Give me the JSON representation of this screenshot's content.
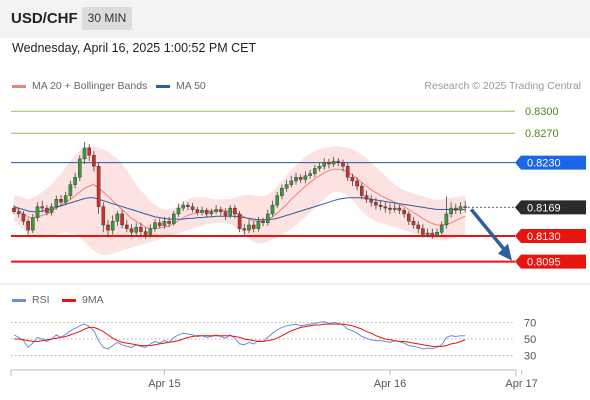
{
  "header": {
    "symbol": "USD/CHF",
    "timeframe": "30 MIN"
  },
  "datetime": "Wednesday, April 16, 2025 1:00:52 PM CET",
  "legend": {
    "ma20_label": "MA 20 + Bollinger Bands",
    "ma50_label": "MA 50",
    "copyright": "Research © 2025 Trading Central"
  },
  "colors": {
    "ma20": "#f08080",
    "ma50": "#2f5f9e",
    "band_fill": "#fde2e2",
    "resistance": "#94bd5e",
    "support": "#e8140f",
    "pivot": "#1e5aa8",
    "current": "#333333",
    "up_candle": "#3a9a3a",
    "down_candle": "#c8322a",
    "rsi": "#6a8fd8",
    "rsi_ma": "#e8140f",
    "arrow": "#2f5f9e"
  },
  "levels": [
    {
      "value": 0.83,
      "label": "0.8300",
      "kind": "resistance"
    },
    {
      "value": 0.827,
      "label": "0.8270",
      "kind": "resistance"
    },
    {
      "value": 0.823,
      "label": "0.8230",
      "kind": "pivot"
    },
    {
      "value": 0.8169,
      "label": "0.8169",
      "kind": "current"
    },
    {
      "value": 0.813,
      "label": "0.8130",
      "kind": "support"
    },
    {
      "value": 0.8095,
      "label": "0.8095",
      "kind": "support"
    }
  ],
  "rsi": {
    "label": "RSI",
    "ma_label": "9MA",
    "ticks": [
      "70",
      "50",
      "30"
    ],
    "tick_values": [
      70,
      50,
      30
    ]
  },
  "x_axis": {
    "labels": [
      "Apr 15",
      "Apr 16",
      "Apr 17"
    ]
  },
  "chart_data": {
    "type": "candlestick",
    "title": "USD/CHF",
    "timeframe": "30 MIN",
    "ylim": [
      0.807,
      0.8318
    ],
    "x_ticks": [
      {
        "label": "Apr 15",
        "bar": 32
      },
      {
        "label": "Apr 16",
        "bar": 80
      },
      {
        "label": "Apr 17",
        "bar": 108
      }
    ],
    "candles": [
      [
        0.8168,
        0.8163,
        0.8172,
        0.816
      ],
      [
        0.8163,
        0.816,
        0.8168,
        0.8155
      ],
      [
        0.816,
        0.815,
        0.8164,
        0.8145
      ],
      [
        0.815,
        0.8138,
        0.8154,
        0.813
      ],
      [
        0.8138,
        0.8155,
        0.816,
        0.8134
      ],
      [
        0.8155,
        0.817,
        0.8176,
        0.815
      ],
      [
        0.817,
        0.8168,
        0.8178,
        0.8162
      ],
      [
        0.8168,
        0.8162,
        0.8172,
        0.8158
      ],
      [
        0.8162,
        0.817,
        0.8175,
        0.8158
      ],
      [
        0.817,
        0.818,
        0.8185,
        0.8166
      ],
      [
        0.818,
        0.8176,
        0.8186,
        0.817
      ],
      [
        0.8176,
        0.8185,
        0.819,
        0.8172
      ],
      [
        0.8185,
        0.82,
        0.8205,
        0.818
      ],
      [
        0.82,
        0.821,
        0.8216,
        0.8195
      ],
      [
        0.821,
        0.8235,
        0.824,
        0.8205
      ],
      [
        0.8235,
        0.825,
        0.8258,
        0.8228
      ],
      [
        0.825,
        0.824,
        0.8255,
        0.8232
      ],
      [
        0.824,
        0.8225,
        0.8246,
        0.8218
      ],
      [
        0.8225,
        0.817,
        0.823,
        0.816
      ],
      [
        0.817,
        0.8145,
        0.8176,
        0.8135
      ],
      [
        0.8145,
        0.8138,
        0.8152,
        0.8128
      ],
      [
        0.8138,
        0.815,
        0.8158,
        0.8132
      ],
      [
        0.815,
        0.816,
        0.8164,
        0.8144
      ],
      [
        0.816,
        0.8145,
        0.8166,
        0.814
      ],
      [
        0.8145,
        0.814,
        0.8152,
        0.8135
      ],
      [
        0.814,
        0.8135,
        0.8146,
        0.813
      ],
      [
        0.8135,
        0.8142,
        0.8148,
        0.813
      ],
      [
        0.8142,
        0.8136,
        0.8148,
        0.813
      ],
      [
        0.8136,
        0.8132,
        0.8142,
        0.8126
      ],
      [
        0.8132,
        0.814,
        0.8146,
        0.8128
      ],
      [
        0.814,
        0.8148,
        0.8153,
        0.8136
      ],
      [
        0.8148,
        0.8144,
        0.8154,
        0.814
      ],
      [
        0.8144,
        0.815,
        0.8156,
        0.814
      ],
      [
        0.815,
        0.8147,
        0.8156,
        0.8142
      ],
      [
        0.8147,
        0.816,
        0.8164,
        0.8144
      ],
      [
        0.816,
        0.8168,
        0.8174,
        0.8156
      ],
      [
        0.8168,
        0.8172,
        0.8177,
        0.8164
      ],
      [
        0.8172,
        0.817,
        0.8176,
        0.8165
      ],
      [
        0.817,
        0.8166,
        0.8175,
        0.8162
      ],
      [
        0.8166,
        0.8162,
        0.817,
        0.8158
      ],
      [
        0.8162,
        0.8165,
        0.817,
        0.8158
      ],
      [
        0.8165,
        0.816,
        0.8168,
        0.8155
      ],
      [
        0.816,
        0.8163,
        0.8167,
        0.8156
      ],
      [
        0.8163,
        0.8166,
        0.8172,
        0.816
      ],
      [
        0.8166,
        0.8163,
        0.817,
        0.8158
      ],
      [
        0.8163,
        0.8158,
        0.8168,
        0.8152
      ],
      [
        0.8158,
        0.8168,
        0.8172,
        0.8154
      ],
      [
        0.8168,
        0.816,
        0.8172,
        0.8154
      ],
      [
        0.816,
        0.814,
        0.8164,
        0.8135
      ],
      [
        0.814,
        0.8138,
        0.8146,
        0.8132
      ],
      [
        0.8138,
        0.8145,
        0.8152,
        0.8134
      ],
      [
        0.8145,
        0.814,
        0.815,
        0.8135
      ],
      [
        0.814,
        0.815,
        0.8156,
        0.8136
      ],
      [
        0.815,
        0.8148,
        0.8155,
        0.8143
      ],
      [
        0.8148,
        0.816,
        0.8166,
        0.8144
      ],
      [
        0.816,
        0.8172,
        0.8178,
        0.8156
      ],
      [
        0.8172,
        0.8185,
        0.819,
        0.8168
      ],
      [
        0.8185,
        0.8195,
        0.82,
        0.818
      ],
      [
        0.8195,
        0.82,
        0.8206,
        0.819
      ],
      [
        0.82,
        0.8205,
        0.8212,
        0.8196
      ],
      [
        0.8205,
        0.821,
        0.8216,
        0.82
      ],
      [
        0.821,
        0.8207,
        0.8214,
        0.8202
      ],
      [
        0.8207,
        0.8212,
        0.8218,
        0.8202
      ],
      [
        0.8212,
        0.8215,
        0.822,
        0.8208
      ],
      [
        0.8215,
        0.8222,
        0.8227,
        0.821
      ],
      [
        0.8222,
        0.8225,
        0.823,
        0.8218
      ],
      [
        0.8225,
        0.823,
        0.8236,
        0.822
      ],
      [
        0.823,
        0.8228,
        0.8235,
        0.8222
      ],
      [
        0.8228,
        0.8232,
        0.8238,
        0.8224
      ],
      [
        0.8232,
        0.823,
        0.8236,
        0.8225
      ],
      [
        0.823,
        0.8225,
        0.8234,
        0.8218
      ],
      [
        0.8225,
        0.821,
        0.823,
        0.8205
      ],
      [
        0.821,
        0.8205,
        0.8215,
        0.8198
      ],
      [
        0.8205,
        0.8198,
        0.821,
        0.8192
      ],
      [
        0.8198,
        0.8185,
        0.8202,
        0.818
      ],
      [
        0.8185,
        0.818,
        0.8192,
        0.8175
      ],
      [
        0.818,
        0.8176,
        0.8186,
        0.817
      ],
      [
        0.8176,
        0.8172,
        0.8182,
        0.8166
      ],
      [
        0.8172,
        0.817,
        0.8178,
        0.8165
      ],
      [
        0.817,
        0.8168,
        0.8176,
        0.8162
      ],
      [
        0.8168,
        0.8166,
        0.8174,
        0.816
      ],
      [
        0.8166,
        0.8168,
        0.8174,
        0.8162
      ],
      [
        0.8168,
        0.8165,
        0.8172,
        0.816
      ],
      [
        0.8165,
        0.816,
        0.8168,
        0.8155
      ],
      [
        0.816,
        0.815,
        0.8164,
        0.8145
      ],
      [
        0.815,
        0.8145,
        0.8156,
        0.814
      ],
      [
        0.8145,
        0.814,
        0.815,
        0.8134
      ],
      [
        0.814,
        0.8132,
        0.8146,
        0.8128
      ],
      [
        0.8132,
        0.8134,
        0.814,
        0.8128
      ],
      [
        0.8134,
        0.813,
        0.814,
        0.8126
      ],
      [
        0.813,
        0.8135,
        0.814,
        0.8128
      ],
      [
        0.8135,
        0.8145,
        0.815,
        0.8132
      ],
      [
        0.8145,
        0.816,
        0.8184,
        0.814
      ],
      [
        0.816,
        0.8168,
        0.8176,
        0.8155
      ],
      [
        0.8168,
        0.8165,
        0.8174,
        0.816
      ],
      [
        0.8165,
        0.817,
        0.8176,
        0.816
      ],
      [
        0.817,
        0.8169,
        0.8178,
        0.8162
      ]
    ],
    "ma20": [
      0.817,
      0.8165,
      0.816,
      0.8156,
      0.8154,
      0.8156,
      0.8158,
      0.816,
      0.8163,
      0.8168,
      0.8172,
      0.8176,
      0.818,
      0.8185,
      0.819,
      0.8195,
      0.8198,
      0.82,
      0.8195,
      0.819,
      0.8184,
      0.8178,
      0.8172,
      0.8166,
      0.816,
      0.8154,
      0.815,
      0.8146,
      0.8142,
      0.814,
      0.814,
      0.8141,
      0.8142,
      0.8144,
      0.8147,
      0.8151,
      0.8155,
      0.8158,
      0.816,
      0.8162,
      0.8163,
      0.8164,
      0.8164,
      0.8165,
      0.8165,
      0.8164,
      0.8164,
      0.8162,
      0.8159,
      0.8156,
      0.8153,
      0.8151,
      0.815,
      0.8151,
      0.8153,
      0.8156,
      0.8161,
      0.8167,
      0.8173,
      0.818,
      0.8186,
      0.8192,
      0.8198,
      0.8203,
      0.8208,
      0.8212,
      0.8216,
      0.8219,
      0.8221,
      0.8221,
      0.822,
      0.8217,
      0.8213,
      0.8208,
      0.8203,
      0.8198,
      0.8193,
      0.8189,
      0.8185,
      0.8182,
      0.8179,
      0.8176,
      0.8173,
      0.817,
      0.8166,
      0.8162,
      0.8158,
      0.8154,
      0.815,
      0.8147,
      0.8145,
      0.8145,
      0.8146,
      0.8148,
      0.8151,
      0.8154,
      0.8157
    ],
    "upper_band": [
      0.8185,
      0.8184,
      0.8182,
      0.818,
      0.8182,
      0.8185,
      0.819,
      0.8195,
      0.82,
      0.8208,
      0.8215,
      0.8223,
      0.8232,
      0.824,
      0.8246,
      0.825,
      0.8252,
      0.8252,
      0.825,
      0.8248,
      0.8245,
      0.824,
      0.8235,
      0.8228,
      0.822,
      0.821,
      0.82,
      0.8192,
      0.8185,
      0.8178,
      0.8172,
      0.8168,
      0.8166,
      0.8166,
      0.8168,
      0.8172,
      0.8176,
      0.818,
      0.8182,
      0.8183,
      0.8183,
      0.8182,
      0.8181,
      0.818,
      0.818,
      0.818,
      0.818,
      0.8182,
      0.8184,
      0.8186,
      0.8186,
      0.8185,
      0.8184,
      0.8184,
      0.8186,
      0.819,
      0.8197,
      0.8205,
      0.8212,
      0.822,
      0.8226,
      0.8232,
      0.8238,
      0.8242,
      0.8246,
      0.8248,
      0.825,
      0.8251,
      0.8252,
      0.8252,
      0.8251,
      0.825,
      0.8248,
      0.8245,
      0.8241,
      0.8236,
      0.823,
      0.8224,
      0.8218,
      0.8212,
      0.8206,
      0.82,
      0.8196,
      0.8192,
      0.819,
      0.8188,
      0.8186,
      0.8184,
      0.8182,
      0.818,
      0.8179,
      0.818,
      0.8181,
      0.8182,
      0.8183,
      0.8184,
      0.8185
    ],
    "lower_band": [
      0.815,
      0.8146,
      0.814,
      0.8134,
      0.813,
      0.8128,
      0.8127,
      0.8128,
      0.813,
      0.8132,
      0.8134,
      0.8135,
      0.8134,
      0.8132,
      0.8128,
      0.8122,
      0.8115,
      0.811,
      0.8106,
      0.8104,
      0.8104,
      0.8106,
      0.8108,
      0.811,
      0.8112,
      0.8114,
      0.8116,
      0.8118,
      0.812,
      0.8122,
      0.8124,
      0.8126,
      0.8128,
      0.813,
      0.8132,
      0.8134,
      0.8136,
      0.8138,
      0.814,
      0.8142,
      0.8144,
      0.8146,
      0.8147,
      0.8148,
      0.8148,
      0.8148,
      0.8146,
      0.8143,
      0.8138,
      0.8132,
      0.8126,
      0.8122,
      0.812,
      0.812,
      0.8122,
      0.8125,
      0.8128,
      0.8132,
      0.8136,
      0.814,
      0.8144,
      0.815,
      0.8156,
      0.8162,
      0.8168,
      0.8174,
      0.818,
      0.8186,
      0.819,
      0.819,
      0.8189,
      0.8185,
      0.818,
      0.8172,
      0.8164,
      0.8158,
      0.8153,
      0.815,
      0.8148,
      0.8146,
      0.8144,
      0.8142,
      0.814,
      0.8138,
      0.8136,
      0.8134,
      0.8132,
      0.813,
      0.8128,
      0.8126,
      0.8124,
      0.8124,
      0.8124,
      0.8126,
      0.8128,
      0.813,
      0.8132
    ],
    "ma50": [
      0.817,
      0.8168,
      0.8166,
      0.8164,
      0.8163,
      0.8163,
      0.8164,
      0.8165,
      0.8167,
      0.8169,
      0.8171,
      0.8173,
      0.8175,
      0.8177,
      0.8179,
      0.8181,
      0.8182,
      0.8182,
      0.818,
      0.8178,
      0.8176,
      0.8174,
      0.8172,
      0.817,
      0.8168,
      0.8166,
      0.8164,
      0.8162,
      0.816,
      0.8158,
      0.8156,
      0.8155,
      0.8154,
      0.8153,
      0.8153,
      0.8153,
      0.8153,
      0.8154,
      0.8154,
      0.8155,
      0.8155,
      0.8156,
      0.8156,
      0.8157,
      0.8157,
      0.8157,
      0.8157,
      0.8157,
      0.8156,
      0.8155,
      0.8154,
      0.8153,
      0.8152,
      0.8152,
      0.8152,
      0.8153,
      0.8154,
      0.8156,
      0.8158,
      0.816,
      0.8162,
      0.8164,
      0.8166,
      0.8168,
      0.817,
      0.8172,
      0.8174,
      0.8176,
      0.8178,
      0.818,
      0.8181,
      0.8182,
      0.8182,
      0.8182,
      0.8182,
      0.8181,
      0.818,
      0.8179,
      0.8178,
      0.8177,
      0.8176,
      0.8175,
      0.8174,
      0.8173,
      0.8172,
      0.8171,
      0.817,
      0.8169,
      0.8168,
      0.8167,
      0.8166,
      0.8166,
      0.8166,
      0.8166,
      0.8166,
      0.8166,
      0.8166
    ],
    "rsi_values": [
      55,
      52,
      48,
      40,
      45,
      52,
      50,
      47,
      50,
      55,
      52,
      56,
      60,
      63,
      66,
      68,
      65,
      60,
      48,
      40,
      38,
      42,
      46,
      43,
      41,
      40,
      43,
      41,
      40,
      44,
      47,
      45,
      48,
      46,
      52,
      55,
      57,
      56,
      55,
      53,
      54,
      52,
      53,
      55,
      53,
      51,
      55,
      51,
      44,
      43,
      46,
      44,
      48,
      47,
      52,
      57,
      61,
      64,
      66,
      67,
      68,
      66,
      67,
      68,
      69,
      70,
      71,
      69,
      70,
      69,
      67,
      62,
      60,
      57,
      53,
      51,
      49,
      48,
      48,
      47,
      46,
      48,
      47,
      45,
      42,
      41,
      40,
      38,
      39,
      38,
      40,
      43,
      52,
      54,
      53,
      54,
      54
    ],
    "rsi_ma": [
      50,
      50,
      49,
      48,
      47,
      47,
      48,
      49,
      50,
      51,
      52,
      53,
      55,
      57,
      59,
      62,
      64,
      64,
      62,
      59,
      55,
      51,
      48,
      46,
      45,
      44,
      43,
      42,
      42,
      42,
      43,
      44,
      45,
      46,
      47,
      48,
      50,
      52,
      53,
      54,
      54,
      54,
      54,
      54,
      54,
      54,
      54,
      53,
      52,
      50,
      49,
      48,
      47,
      47,
      48,
      49,
      51,
      54,
      57,
      60,
      62,
      64,
      65,
      66,
      67,
      67,
      68,
      68,
      68,
      68,
      68,
      67,
      66,
      64,
      62,
      59,
      57,
      54,
      52,
      50,
      49,
      48,
      47,
      47,
      46,
      45,
      44,
      43,
      42,
      41,
      41,
      41,
      42,
      44,
      45,
      47,
      49
    ],
    "forecast": {
      "from": 0.8169,
      "to": 0.8095
    }
  }
}
